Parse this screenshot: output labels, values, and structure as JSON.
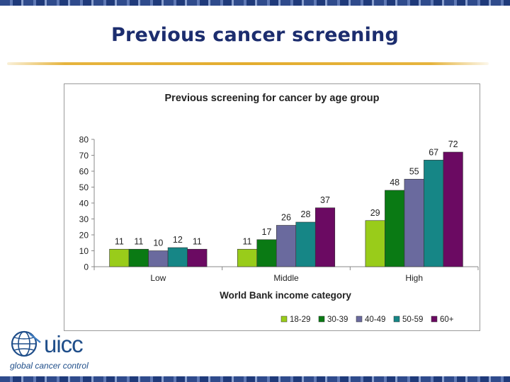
{
  "slide": {
    "title": "Previous cancer screening"
  },
  "logo": {
    "word": "uicc",
    "tagline": "global cancer control",
    "icon": "globe-icon"
  },
  "colors": {
    "title": "#1c2d6e",
    "rule": "#e3ad2f",
    "series": [
      "#99cc1a",
      "#0a7a14",
      "#6a6a9e",
      "#168686",
      "#6b0a62"
    ]
  },
  "chart_data": {
    "type": "bar",
    "title": "Previous screening for cancer by age group",
    "xlabel": "World Bank income category",
    "ylabel": "",
    "ylim": [
      0,
      80
    ],
    "yticks": [
      0,
      10,
      20,
      30,
      40,
      50,
      60,
      70,
      80
    ],
    "categories": [
      "Low",
      "Middle",
      "High"
    ],
    "series": [
      {
        "name": "18-29",
        "values": [
          11,
          11,
          29
        ]
      },
      {
        "name": "30-39",
        "values": [
          11,
          17,
          48
        ]
      },
      {
        "name": "40-49",
        "values": [
          10,
          26,
          55
        ]
      },
      {
        "name": "50-59",
        "values": [
          12,
          28,
          67
        ]
      },
      {
        "name": "60+",
        "values": [
          11,
          37,
          72
        ]
      }
    ],
    "legend": "bottom-right",
    "grid": false,
    "data_labels": true
  }
}
